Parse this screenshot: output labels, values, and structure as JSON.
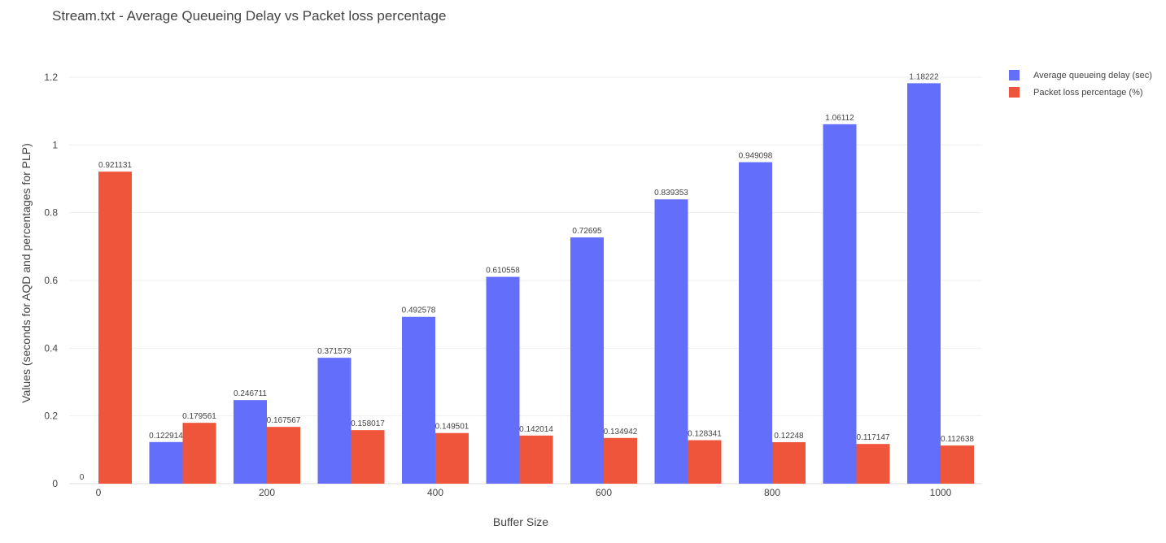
{
  "title": "Stream.txt - Average Queueing Delay vs Packet loss percentage",
  "legend": {
    "items": [
      {
        "label": "Average queueing delay (sec)",
        "color": "#636efa"
      },
      {
        "label": "Packet loss percentage (%)",
        "color": "#ef553b"
      }
    ]
  },
  "chart_data": {
    "type": "bar",
    "title": "Stream.txt - Average Queueing Delay vs Packet loss percentage",
    "xlabel": "Buffer Size",
    "ylabel": "Values (seconds for AQD and percentages for PLP)",
    "x": [
      0,
      100,
      200,
      300,
      400,
      500,
      600,
      700,
      800,
      900,
      1000
    ],
    "xticks": [
      0,
      200,
      400,
      600,
      800,
      1000
    ],
    "yticks": [
      0,
      0.2,
      0.4,
      0.6,
      0.8,
      1,
      1.2
    ],
    "ylim": [
      0,
      1.25
    ],
    "grid": true,
    "legend_position": "top-right",
    "series": [
      {
        "name": "Average queueing delay (sec)",
        "color": "#636efa",
        "values": [
          0,
          0.122914,
          0.246711,
          0.371579,
          0.492578,
          0.610558,
          0.72695,
          0.839353,
          0.949098,
          1.06112,
          1.18222
        ],
        "labels": [
          "0",
          "0.122914",
          "0.246711",
          "0.371579",
          "0.492578",
          "0.610558",
          "0.72695",
          "0.839353",
          "0.949098",
          "1.06112",
          "1.18222"
        ]
      },
      {
        "name": "Packet loss percentage (%)",
        "color": "#ef553b",
        "values": [
          0.921131,
          0.179561,
          0.167567,
          0.158017,
          0.149501,
          0.142014,
          0.134942,
          0.128341,
          0.12248,
          0.117147,
          0.112638
        ],
        "labels": [
          "0.921131",
          "0.179561",
          "0.167567",
          "0.158017",
          "0.149501",
          "0.142014",
          "0.134942",
          "0.128341",
          "0.12248",
          "0.117147",
          "0.112638"
        ]
      }
    ]
  }
}
